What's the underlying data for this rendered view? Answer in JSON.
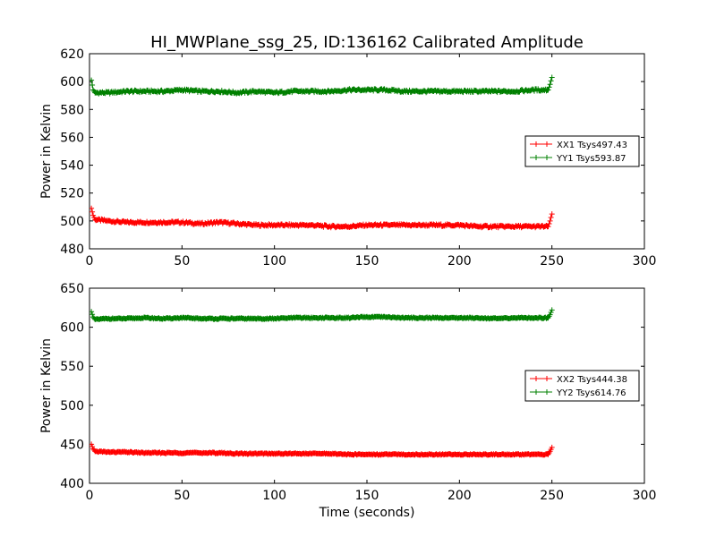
{
  "chart_data": [
    {
      "type": "line",
      "title": "HI_MWPlane_ssg_25, ID:136162 Calibrated Amplitude",
      "xlabel": "",
      "ylabel": "Power in Kelvin",
      "xlim": [
        0,
        300
      ],
      "ylim": [
        480,
        620
      ],
      "xticks": [
        0,
        50,
        100,
        150,
        200,
        250,
        300
      ],
      "yticks": [
        480,
        500,
        520,
        540,
        560,
        580,
        600,
        620
      ],
      "grid": false,
      "legend_position": "right",
      "marker": "+",
      "series": [
        {
          "name": "XX1 Tsys497.43",
          "color": "#ff0000",
          "x": [
            1,
            2,
            3,
            10,
            20,
            30,
            40,
            50,
            60,
            70,
            80,
            90,
            100,
            110,
            120,
            130,
            140,
            150,
            160,
            170,
            180,
            190,
            200,
            210,
            220,
            230,
            240,
            248,
            249,
            250
          ],
          "y": [
            509,
            504,
            501,
            500,
            499,
            499,
            499,
            499,
            498,
            499,
            498,
            497,
            497,
            497,
            497,
            496,
            496,
            497,
            497,
            497,
            497,
            497,
            497,
            496,
            496,
            496,
            496,
            496,
            500,
            505
          ]
        },
        {
          "name": "YY1 Tsys593.87",
          "color": "#008000",
          "x": [
            1,
            2,
            3,
            10,
            20,
            30,
            40,
            50,
            60,
            70,
            80,
            90,
            100,
            110,
            120,
            130,
            140,
            150,
            160,
            170,
            180,
            190,
            200,
            210,
            220,
            230,
            240,
            248,
            249,
            250
          ],
          "y": [
            601,
            594,
            592,
            592,
            593,
            593,
            593,
            594,
            593,
            593,
            592,
            593,
            592,
            593,
            593,
            593,
            594,
            594,
            594,
            593,
            593,
            593,
            593,
            593,
            593,
            593,
            594,
            594,
            598,
            603
          ]
        }
      ]
    },
    {
      "type": "line",
      "title": "",
      "xlabel": "Time (seconds)",
      "ylabel": "Power in Kelvin",
      "xlim": [
        0,
        300
      ],
      "ylim": [
        400,
        650
      ],
      "xticks": [
        0,
        50,
        100,
        150,
        200,
        250,
        300
      ],
      "yticks": [
        400,
        450,
        500,
        550,
        600,
        650
      ],
      "grid": false,
      "legend_position": "right",
      "marker": "+",
      "series": [
        {
          "name": "XX2 Tsys444.38",
          "color": "#ff0000",
          "x": [
            1,
            2,
            3,
            10,
            20,
            30,
            40,
            50,
            60,
            70,
            80,
            90,
            100,
            110,
            120,
            130,
            140,
            150,
            160,
            170,
            180,
            190,
            200,
            210,
            220,
            230,
            240,
            248,
            249,
            250
          ],
          "y": [
            450,
            444,
            441,
            440,
            440,
            439,
            439,
            439,
            439,
            439,
            438,
            438,
            438,
            438,
            438,
            438,
            437,
            437,
            437,
            437,
            437,
            437,
            437,
            437,
            437,
            437,
            437,
            437,
            441,
            446
          ]
        },
        {
          "name": "YY2 Tsys614.76",
          "color": "#008000",
          "x": [
            1,
            2,
            3,
            10,
            20,
            30,
            40,
            50,
            60,
            70,
            80,
            90,
            100,
            110,
            120,
            130,
            140,
            150,
            160,
            170,
            180,
            190,
            200,
            210,
            220,
            230,
            240,
            248,
            249,
            250
          ],
          "y": [
            620,
            613,
            610,
            611,
            611,
            612,
            611,
            612,
            611,
            611,
            611,
            611,
            611,
            612,
            612,
            612,
            612,
            613,
            613,
            612,
            612,
            612,
            612,
            612,
            611,
            612,
            612,
            612,
            616,
            622
          ]
        }
      ]
    }
  ]
}
